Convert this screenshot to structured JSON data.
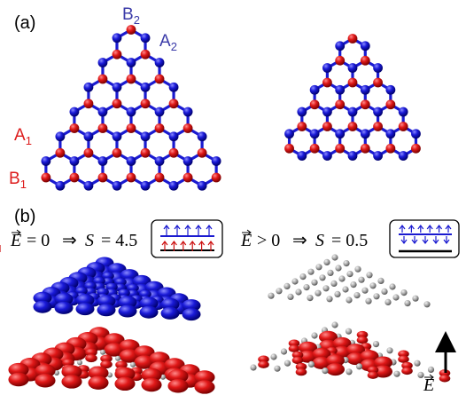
{
  "panel_a_label": "(a)",
  "panel_b_label": "(b)",
  "site_labels": {
    "b2": "B",
    "b2_sub": "2",
    "a2": "A",
    "a2_sub": "2",
    "a1": "A",
    "a1_sub": "1",
    "b1": "B",
    "b1_sub": "1"
  },
  "eq_left": {
    "E": "E",
    "rel": "= 0",
    "arrow": "⇒",
    "S": "S",
    "val": "= 4.5"
  },
  "eq_right": {
    "E": "E",
    "rel": "> 0",
    "arrow": "⇒",
    "S": "S",
    "val": "= 0.5"
  },
  "field_label": "E",
  "colors": {
    "red": "#cc1010",
    "blue": "#1a1ad0",
    "gray": "#a0a0a0"
  }
}
